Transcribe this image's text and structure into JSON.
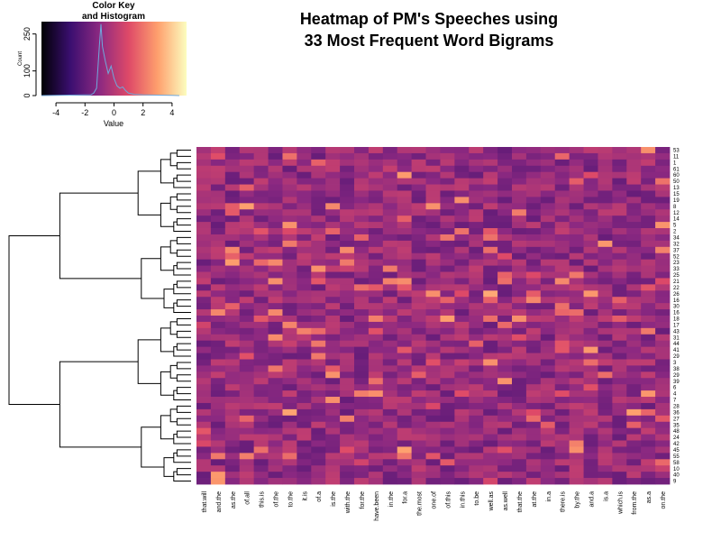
{
  "chart_data": {
    "type": "heatmap",
    "title_lines": [
      "Heatmap of PM's Speeches using",
      "33 Most Frequent Word Bigrams"
    ],
    "columns": [
      "that.will",
      "and.the",
      "as.the",
      "of.all",
      "this.is",
      "of.the",
      "to.the",
      "it.is",
      "of.a",
      "is.the",
      "with.the",
      "for.the",
      "have.been",
      "in.the",
      "for.a",
      "the.most",
      "one.of",
      "of.this",
      "in.this",
      "to.be",
      "well.as",
      "as.well",
      "that.the",
      "at.the",
      "in.a",
      "there.is",
      "by.the",
      "and.a",
      "is.a",
      "which.is",
      "from.the",
      "as.a",
      "on.the"
    ],
    "rows": [
      "53",
      "11",
      "1",
      "61",
      "60",
      "50",
      "13",
      "15",
      "19",
      "8",
      "12",
      "14",
      "5",
      "2",
      "34",
      "32",
      "37",
      "52",
      "23",
      "33",
      "25",
      "21",
      "22",
      "26",
      "16",
      "30",
      "16",
      "18",
      "17",
      "43",
      "31",
      "44",
      "41",
      "29",
      "3",
      "38",
      "29",
      "39",
      "6",
      "4",
      "7",
      "28",
      "36",
      "27",
      "35",
      "48",
      "24",
      "42",
      "45",
      "55",
      "58",
      "10",
      "40",
      "9"
    ],
    "dendrogram": "row",
    "color_key": {
      "title_lines": [
        "Color Key",
        "and Histogram"
      ],
      "xlabel": "Value",
      "ylabel": "Count",
      "x_ticks": [
        -4,
        -2,
        0,
        2,
        4
      ],
      "y_ticks": [
        0,
        100,
        250
      ],
      "xlim": [
        -5,
        5
      ],
      "ylim": [
        0,
        300
      ],
      "histogram": [
        {
          "x": -1.6,
          "count": 3
        },
        {
          "x": -1.4,
          "count": 10
        },
        {
          "x": -1.2,
          "count": 30
        },
        {
          "x": -1.0,
          "count": 210
        },
        {
          "x": -0.9,
          "count": 290
        },
        {
          "x": -0.8,
          "count": 200
        },
        {
          "x": -0.6,
          "count": 140
        },
        {
          "x": -0.4,
          "count": 90
        },
        {
          "x": -0.2,
          "count": 120
        },
        {
          "x": 0.0,
          "count": 70
        },
        {
          "x": 0.2,
          "count": 40
        },
        {
          "x": 0.4,
          "count": 30
        },
        {
          "x": 0.6,
          "count": 35
        },
        {
          "x": 0.8,
          "count": 20
        },
        {
          "x": 1.0,
          "count": 10
        },
        {
          "x": 1.4,
          "count": 5
        },
        {
          "x": 2.0,
          "count": 3
        },
        {
          "x": 3.0,
          "count": 2
        },
        {
          "x": 4.0,
          "count": 1
        }
      ]
    },
    "palette": [
      "#000004",
      "#3b0f70",
      "#8c2981",
      "#de4968",
      "#fe9f6d",
      "#fcfdbf"
    ]
  }
}
